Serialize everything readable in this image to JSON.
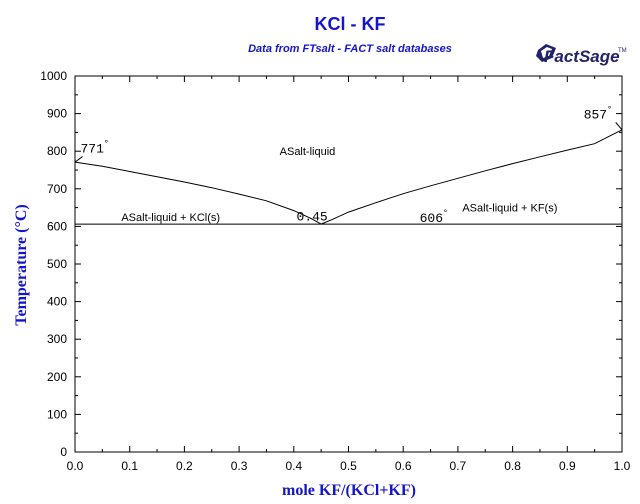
{
  "chart_data": {
    "type": "line",
    "title": "KCl - KF",
    "subtitle": "Data from FTsalt - FACT salt databases",
    "xlabel": "mole KF/(KCl+KF)",
    "ylabel": "Temperature (°C)",
    "xlim": [
      0,
      1
    ],
    "ylim": [
      0,
      1000
    ],
    "x_ticks": [
      0.0,
      0.1,
      0.2,
      0.3,
      0.4,
      0.5,
      0.6,
      0.7,
      0.8,
      0.9,
      1.0
    ],
    "x_tick_labels": [
      "0.0",
      "0.1",
      "0.2",
      "0.3",
      "0.4",
      "0.5",
      "0.6",
      "0.7",
      "0.8",
      "0.9",
      "1.0"
    ],
    "y_ticks": [
      0,
      100,
      200,
      300,
      400,
      500,
      600,
      700,
      800,
      900,
      1000
    ],
    "y_tick_labels": [
      "0",
      "100",
      "200",
      "300",
      "400",
      "500",
      "600",
      "700",
      "800",
      "900",
      "1000"
    ],
    "grid": false,
    "series": [
      {
        "x": [
          0.0,
          0.05,
          0.1,
          0.15,
          0.2,
          0.25,
          0.3,
          0.35,
          0.4,
          0.43,
          0.45
        ],
        "y": [
          771,
          760,
          746,
          732,
          718,
          703,
          686,
          668,
          642,
          622,
          606
        ]
      },
      {
        "x": [
          0.45,
          0.47,
          0.5,
          0.55,
          0.6,
          0.65,
          0.7,
          0.75,
          0.8,
          0.85,
          0.9,
          0.95,
          1.0
        ],
        "y": [
          606,
          618,
          638,
          663,
          687,
          708,
          728,
          748,
          767,
          785,
          803,
          820,
          857
        ]
      },
      {
        "x": [
          0.0,
          1.0
        ],
        "y": [
          606,
          606
        ]
      }
    ],
    "region_labels": [
      {
        "text": "ASalt-liquid",
        "x": 0.425,
        "y": 790
      },
      {
        "text": "ASalt-liquid + KCl(s)",
        "x": 0.175,
        "y": 615
      },
      {
        "text": "ASalt-liquid + KF(s)",
        "x": 0.795,
        "y": 640
      }
    ],
    "point_labels": [
      {
        "text": "771",
        "degree": "°",
        "x": 0.0,
        "y": 771,
        "dx": 0.01,
        "dy": 20
      },
      {
        "text": "857",
        "degree": "°",
        "x": 1.0,
        "y": 857,
        "dx": -0.07,
        "dy": 25
      },
      {
        "text": "606",
        "degree": "°",
        "x": 0.63,
        "y": 606,
        "dx": 0.0,
        "dy": 0
      },
      {
        "text": "0.45",
        "degree": "",
        "x": 0.45,
        "y": 606,
        "dx": -0.045,
        "dy": 5
      }
    ],
    "colors": {
      "title": "#1515c8",
      "axis": "#000000",
      "lines": "#000000",
      "logo": "#22226a"
    }
  },
  "logo": {
    "text": "FactSage",
    "tm": "TM"
  }
}
